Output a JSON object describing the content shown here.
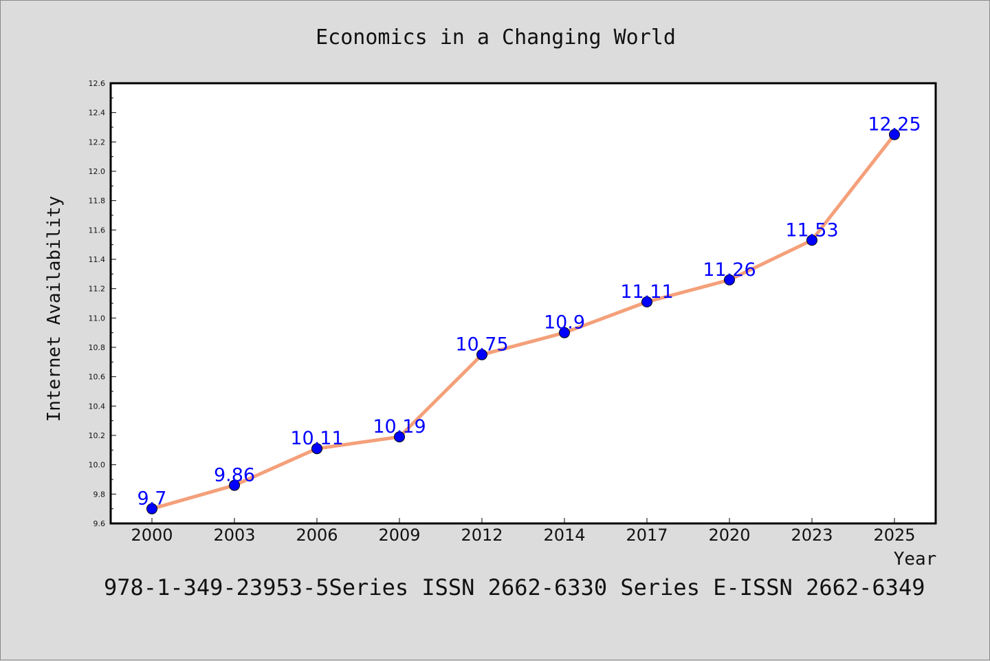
{
  "chart_data": {
    "type": "line",
    "title": "Economics in a Changing World",
    "xlabel": "Year",
    "ylabel": "Internet Availability",
    "categories": [
      "2000",
      "2003",
      "2006",
      "2009",
      "2012",
      "2014",
      "2017",
      "2020",
      "2023",
      "2025"
    ],
    "series": [
      {
        "values": [
          9.7,
          9.86,
          10.11,
          10.19,
          10.75,
          10.9,
          11.11,
          11.26,
          11.53,
          12.25
        ],
        "data_labels": [
          "9.7",
          "9.86",
          "10.11",
          "10.19",
          "10.75",
          "10.9",
          "11.11",
          "11.26",
          "11.53",
          "12.25"
        ]
      }
    ],
    "ylim": [
      9.6,
      12.6
    ],
    "yticks": [
      "9.6",
      "9.8",
      "10.0",
      "10.2",
      "10.4",
      "10.6",
      "10.8",
      "11.0",
      "11.2",
      "11.4",
      "11.6",
      "11.8",
      "12.0",
      "12.2",
      "12.4",
      "12.6"
    ],
    "grid": false,
    "line_color": "#f4a07a",
    "marker_color": "#0000ff",
    "label_color": "#0000ff",
    "background_color": "#dcdcdc",
    "plot_background": "#ffffff"
  },
  "footer": "978-1-349-23953-5Series ISSN 2662-6330 Series E-ISSN 2662-6349"
}
